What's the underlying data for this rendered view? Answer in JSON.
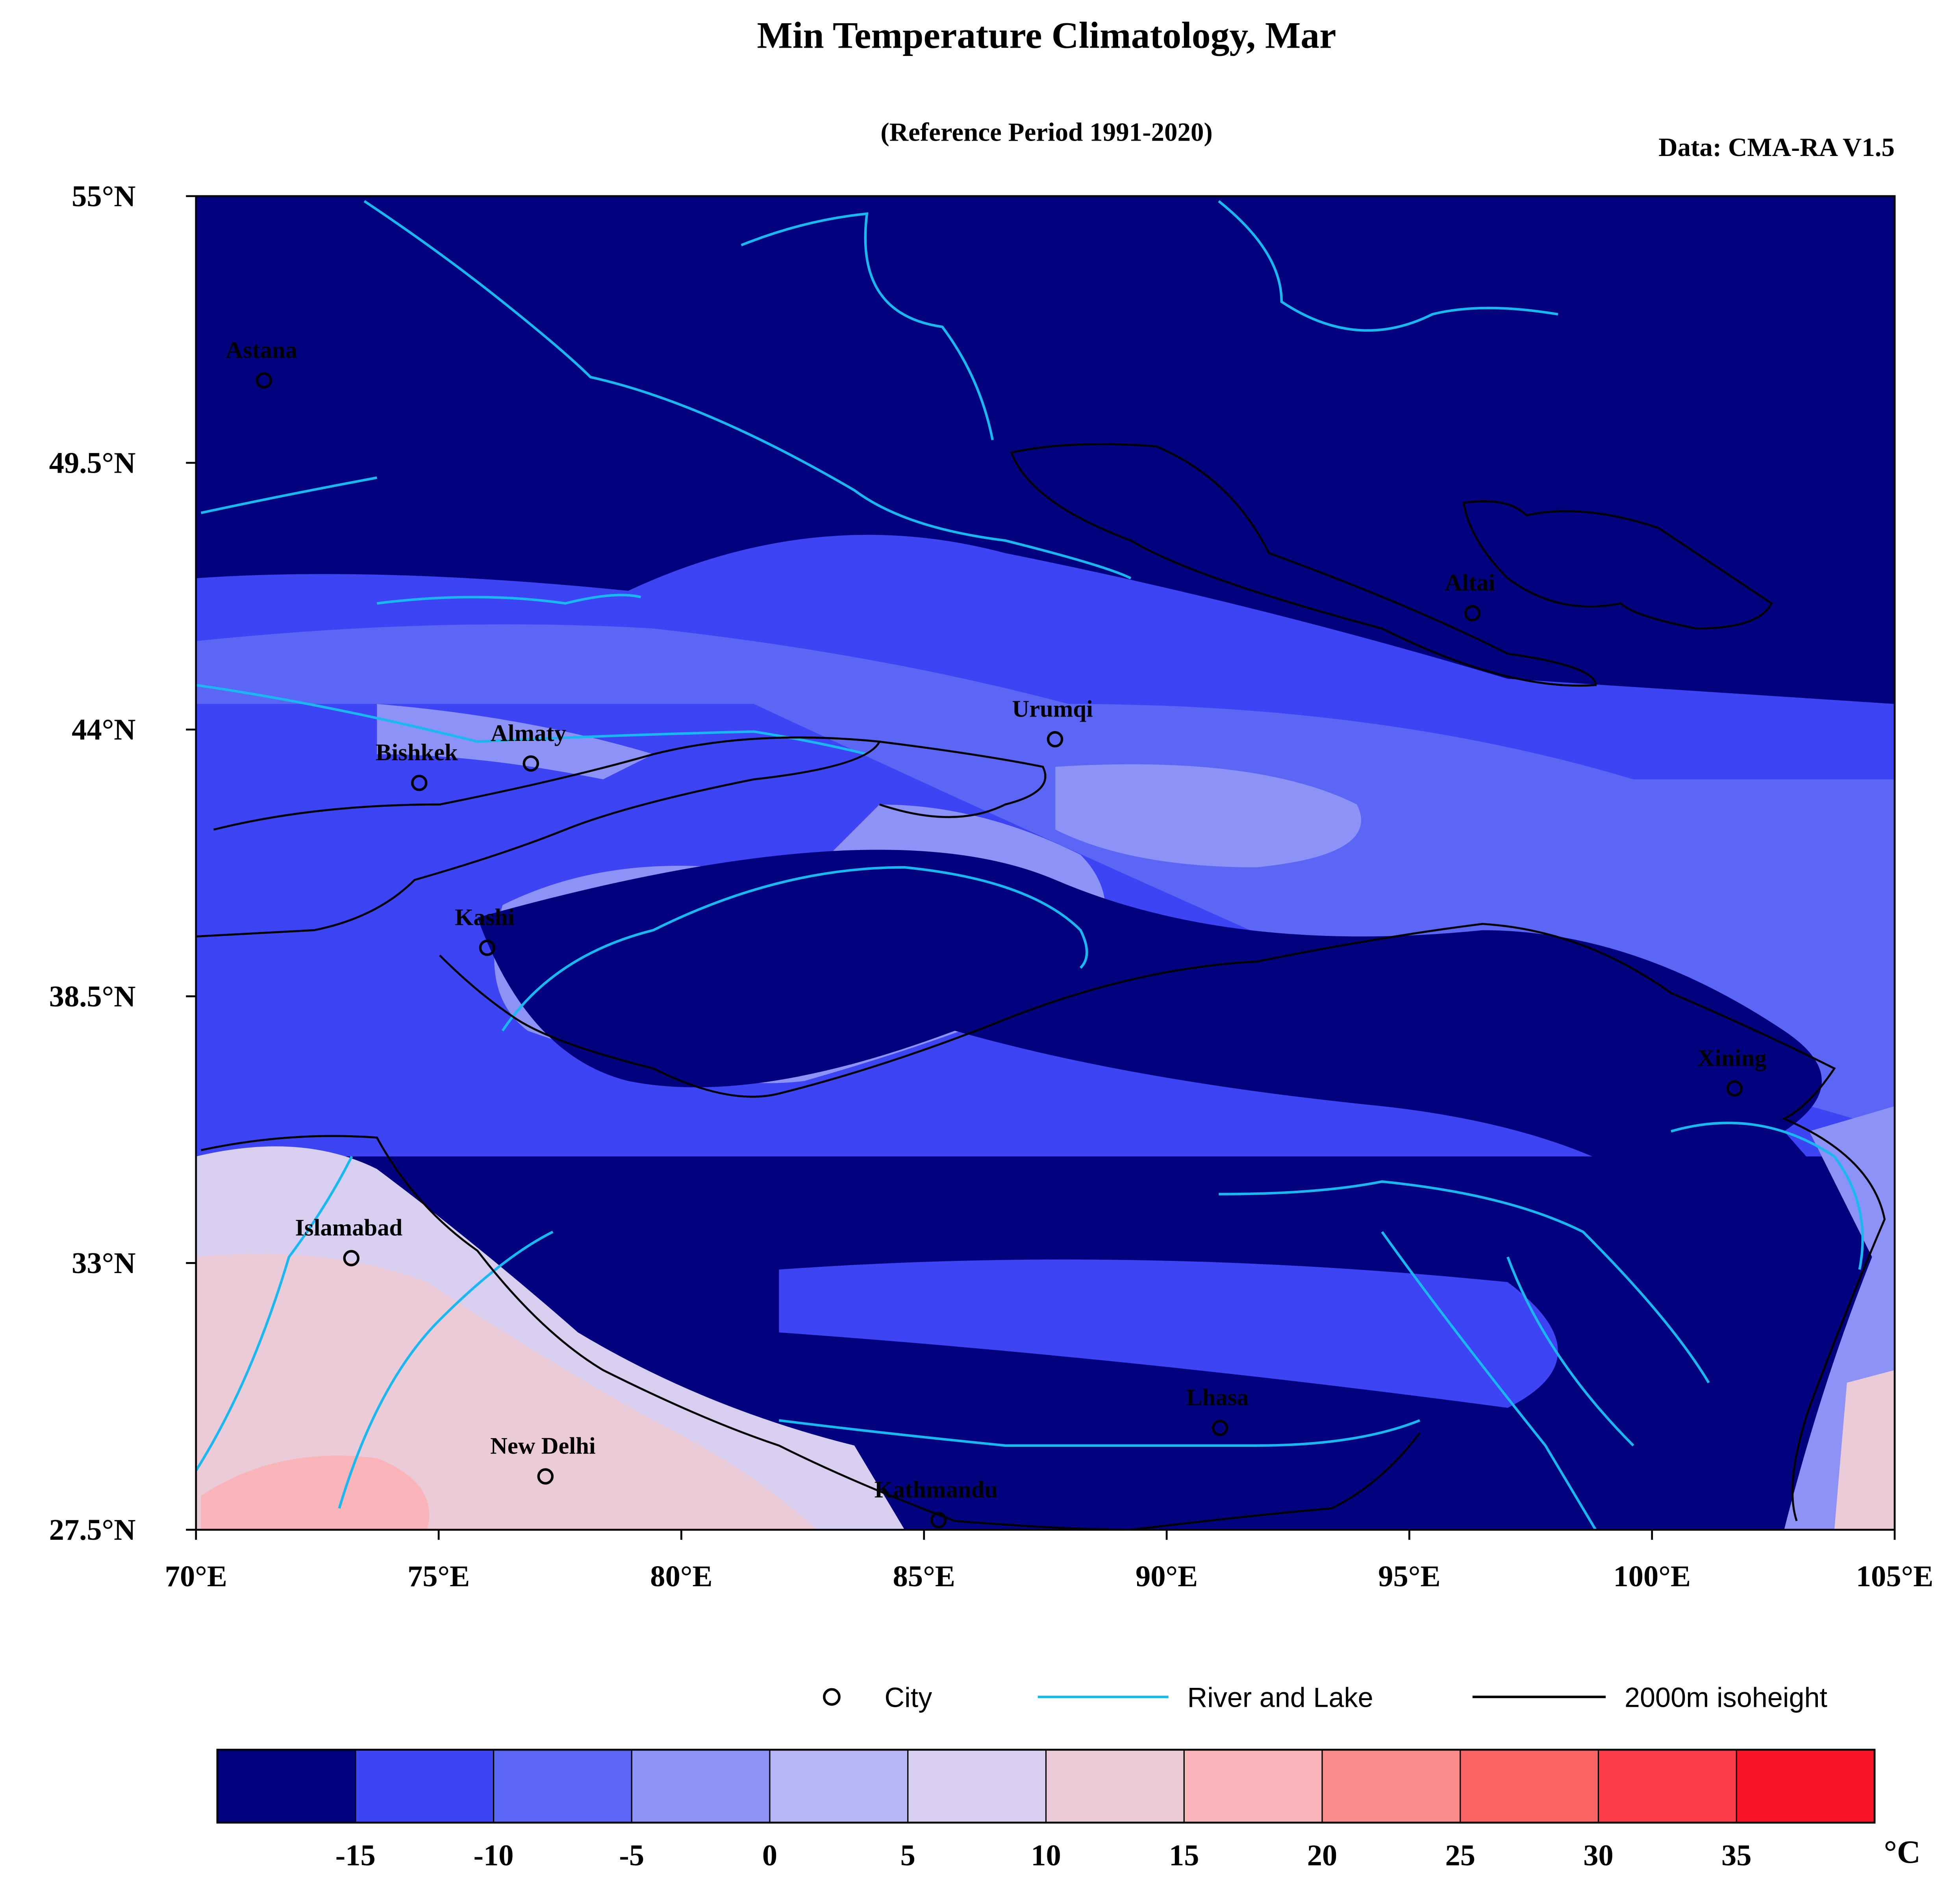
{
  "map": {
    "title": "Min Temperature Climatology, Mar",
    "subtitle": "(Reference Period 1991-2020)",
    "source": "Data: CMA-RA V1.5",
    "xlim": [
      70,
      105
    ],
    "ylim": [
      27.5,
      55
    ],
    "xticks": [
      {
        "value": 70,
        "label": "70°E"
      },
      {
        "value": 75,
        "label": "75°E"
      },
      {
        "value": 80,
        "label": "80°E"
      },
      {
        "value": 85,
        "label": "85°E"
      },
      {
        "value": 90,
        "label": "90°E"
      },
      {
        "value": 95,
        "label": "95°E"
      },
      {
        "value": 100,
        "label": "100°E"
      },
      {
        "value": 105,
        "label": "105°E"
      }
    ],
    "yticks": [
      {
        "value": 55,
        "label": "55°N"
      },
      {
        "value": 49.5,
        "label": "49.5°N"
      },
      {
        "value": 44,
        "label": "44°N"
      },
      {
        "value": 38.5,
        "label": "38.5°N"
      },
      {
        "value": 33,
        "label": "33°N"
      },
      {
        "value": 27.5,
        "label": "27.5°N"
      }
    ],
    "cities": [
      {
        "name": "Astana",
        "lon": 71.4,
        "lat": 51.2
      },
      {
        "name": "Altai",
        "lon": 96.3,
        "lat": 46.4
      },
      {
        "name": "Bishkek",
        "lon": 74.6,
        "lat": 42.9
      },
      {
        "name": "Almaty",
        "lon": 76.9,
        "lat": 43.3
      },
      {
        "name": "Urumqi",
        "lon": 87.7,
        "lat": 43.8
      },
      {
        "name": "Kashi",
        "lon": 76.0,
        "lat": 39.5
      },
      {
        "name": "Xining",
        "lon": 101.7,
        "lat": 36.6
      },
      {
        "name": "Islamabad",
        "lon": 73.2,
        "lat": 33.1
      },
      {
        "name": "Lhasa",
        "lon": 91.1,
        "lat": 29.6
      },
      {
        "name": "New Delhi",
        "lon": 77.2,
        "lat": 28.6
      },
      {
        "name": "Kathmandu",
        "lon": 85.3,
        "lat": 27.7
      }
    ],
    "legend": [
      "City",
      "River and Lake",
      "2000m isoheight"
    ],
    "colorbar": {
      "levels": [
        -15,
        -10,
        -5,
        0,
        5,
        10,
        15,
        20,
        25,
        30,
        35
      ],
      "colors": [
        "#02027f",
        "#3c44f4",
        "#5c66f4",
        "#8c92f6",
        "#b6b6f4",
        "#d8cef0",
        "#eccbd8",
        "#f8b4b8",
        "#fa8c8c",
        "#fa6464",
        "#fa3c48",
        "#fa1428"
      ],
      "unit": "°C"
    }
  }
}
